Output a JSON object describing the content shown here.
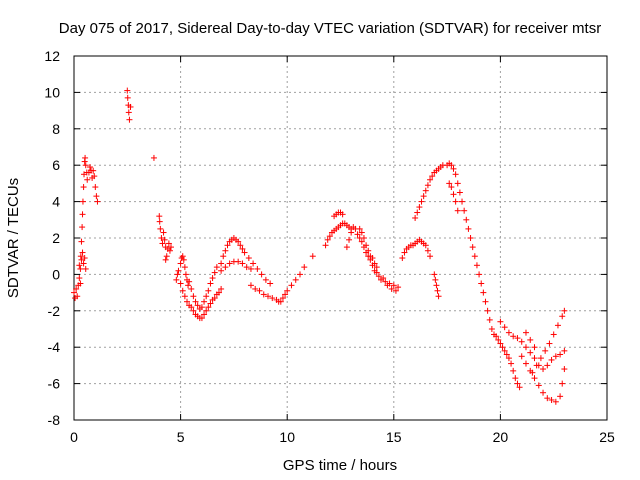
{
  "chart_data": {
    "type": "scatter",
    "title": "Day 075 of 2017, Sidereal Day-to-day VTEC variation (SDTVAR) for receiver mtsr",
    "xlabel": "GPS time / hours",
    "ylabel": "SDTVAR / TECUs",
    "xlim": [
      0,
      25
    ],
    "ylim": [
      -8,
      12
    ],
    "xticks": [
      0,
      5,
      10,
      15,
      20,
      25
    ],
    "yticks": [
      -8,
      -6,
      -4,
      -2,
      0,
      2,
      4,
      6,
      8,
      10,
      12
    ],
    "grid": true,
    "marker": "+",
    "series_color": "#ff0000",
    "series": [
      {
        "name": "mtsr",
        "values": [
          [
            0.0,
            -1.0
          ],
          [
            0.05,
            -1.3
          ],
          [
            0.1,
            -0.8
          ],
          [
            0.15,
            -1.2
          ],
          [
            0.2,
            -0.6
          ],
          [
            0.25,
            -0.2
          ],
          [
            0.3,
            0.3
          ],
          [
            0.32,
            1.0
          ],
          [
            0.35,
            1.8
          ],
          [
            0.38,
            2.6
          ],
          [
            0.4,
            3.3
          ],
          [
            0.42,
            4.0
          ],
          [
            0.45,
            4.8
          ],
          [
            0.47,
            5.5
          ],
          [
            0.5,
            6.2
          ],
          [
            0.52,
            6.4
          ],
          [
            0.55,
            6.0
          ],
          [
            0.6,
            5.6
          ],
          [
            0.62,
            5.2
          ],
          [
            0.7,
            5.6
          ],
          [
            0.75,
            5.9
          ],
          [
            0.8,
            5.7
          ],
          [
            0.85,
            5.3
          ],
          [
            0.9,
            5.7
          ],
          [
            0.95,
            5.4
          ],
          [
            1.0,
            4.8
          ],
          [
            1.05,
            4.3
          ],
          [
            1.1,
            4.0
          ],
          [
            0.35,
            0.8
          ],
          [
            0.4,
            1.2
          ],
          [
            0.45,
            0.6
          ],
          [
            0.5,
            0.9
          ],
          [
            0.55,
            0.3
          ],
          [
            0.3,
            -0.5
          ],
          [
            0.25,
            0.5
          ],
          [
            2.5,
            10.1
          ],
          [
            2.52,
            9.7
          ],
          [
            2.55,
            9.3
          ],
          [
            2.57,
            8.9
          ],
          [
            2.6,
            8.5
          ],
          [
            2.65,
            9.2
          ],
          [
            3.75,
            6.4
          ],
          [
            4.0,
            3.2
          ],
          [
            4.02,
            2.9
          ],
          [
            4.05,
            2.5
          ],
          [
            4.1,
            2.0
          ],
          [
            4.15,
            1.7
          ],
          [
            4.2,
            2.3
          ],
          [
            4.25,
            1.9
          ],
          [
            4.3,
            1.5
          ],
          [
            4.35,
            1.0
          ],
          [
            4.4,
            1.4
          ],
          [
            4.45,
            1.7
          ],
          [
            4.5,
            1.3
          ],
          [
            4.55,
            1.5
          ],
          [
            4.3,
            0.8
          ],
          [
            4.8,
            -0.3
          ],
          [
            4.85,
            0.0
          ],
          [
            4.9,
            0.2
          ],
          [
            5.0,
            0.6
          ],
          [
            5.05,
            0.9
          ],
          [
            5.1,
            1.0
          ],
          [
            5.15,
            0.8
          ],
          [
            5.2,
            0.4
          ],
          [
            5.25,
            0.0
          ],
          [
            5.3,
            -0.3
          ],
          [
            5.35,
            -0.6
          ],
          [
            5.0,
            -0.5
          ],
          [
            5.1,
            -0.9
          ],
          [
            5.2,
            -1.2
          ],
          [
            5.3,
            -1.5
          ],
          [
            5.4,
            -1.7
          ],
          [
            5.5,
            -1.8
          ],
          [
            5.6,
            -2.0
          ],
          [
            5.7,
            -2.2
          ],
          [
            5.8,
            -2.3
          ],
          [
            5.9,
            -2.4
          ],
          [
            6.0,
            -2.4
          ],
          [
            6.1,
            -2.2
          ],
          [
            6.2,
            -2.0
          ],
          [
            6.3,
            -1.8
          ],
          [
            5.4,
            -0.4
          ],
          [
            5.5,
            -0.8
          ],
          [
            5.6,
            -1.2
          ],
          [
            5.7,
            -1.5
          ],
          [
            5.8,
            -1.7
          ],
          [
            5.9,
            -1.9
          ],
          [
            6.0,
            -1.8
          ],
          [
            6.1,
            -1.5
          ],
          [
            6.2,
            -1.2
          ],
          [
            6.3,
            -0.9
          ],
          [
            6.4,
            -0.5
          ],
          [
            6.5,
            -0.2
          ],
          [
            6.6,
            0.1
          ],
          [
            6.7,
            0.4
          ],
          [
            6.4,
            -1.6
          ],
          [
            6.5,
            -1.4
          ],
          [
            6.6,
            -1.3
          ],
          [
            6.7,
            -1.1
          ],
          [
            6.8,
            -1.0
          ],
          [
            6.9,
            -0.8
          ],
          [
            6.9,
            0.6
          ],
          [
            7.0,
            1.0
          ],
          [
            7.1,
            1.3
          ],
          [
            7.2,
            1.6
          ],
          [
            7.3,
            1.8
          ],
          [
            7.4,
            1.9
          ],
          [
            7.5,
            2.0
          ],
          [
            7.6,
            1.9
          ],
          [
            7.7,
            1.8
          ],
          [
            7.8,
            1.6
          ],
          [
            7.9,
            1.4
          ],
          [
            8.0,
            1.2
          ],
          [
            8.2,
            0.9
          ],
          [
            8.4,
            0.6
          ],
          [
            8.6,
            0.3
          ],
          [
            8.8,
            0.0
          ],
          [
            9.0,
            -0.3
          ],
          [
            9.2,
            -0.5
          ],
          [
            6.9,
            0.2
          ],
          [
            7.1,
            0.4
          ],
          [
            7.3,
            0.6
          ],
          [
            7.5,
            0.7
          ],
          [
            7.7,
            0.7
          ],
          [
            7.9,
            0.6
          ],
          [
            8.1,
            0.4
          ],
          [
            8.3,
            0.3
          ],
          [
            8.3,
            -0.6
          ],
          [
            8.5,
            -0.8
          ],
          [
            8.7,
            -0.9
          ],
          [
            8.9,
            -1.1
          ],
          [
            9.1,
            -1.2
          ],
          [
            9.3,
            -1.3
          ],
          [
            9.5,
            -1.4
          ],
          [
            9.6,
            -1.5
          ],
          [
            9.7,
            -1.5
          ],
          [
            9.8,
            -1.3
          ],
          [
            9.9,
            -1.1
          ],
          [
            10.0,
            -0.9
          ],
          [
            10.2,
            -0.6
          ],
          [
            10.4,
            -0.3
          ],
          [
            10.6,
            0.0
          ],
          [
            10.8,
            0.4
          ],
          [
            11.2,
            1.0
          ],
          [
            11.8,
            1.6
          ],
          [
            11.9,
            1.9
          ],
          [
            12.0,
            2.1
          ],
          [
            12.1,
            2.3
          ],
          [
            12.2,
            2.4
          ],
          [
            12.3,
            2.5
          ],
          [
            12.4,
            2.6
          ],
          [
            12.5,
            2.7
          ],
          [
            12.6,
            2.8
          ],
          [
            12.7,
            2.8
          ],
          [
            12.8,
            2.7
          ],
          [
            12.9,
            2.6
          ],
          [
            13.0,
            2.5
          ],
          [
            12.2,
            3.2
          ],
          [
            12.3,
            3.3
          ],
          [
            12.4,
            3.4
          ],
          [
            12.5,
            3.4
          ],
          [
            12.6,
            3.3
          ],
          [
            12.8,
            1.5
          ],
          [
            12.9,
            1.9
          ],
          [
            13.0,
            2.3
          ],
          [
            13.1,
            2.6
          ],
          [
            13.2,
            2.5
          ],
          [
            13.3,
            2.2
          ],
          [
            13.4,
            2.0
          ],
          [
            13.5,
            1.8
          ],
          [
            13.6,
            1.5
          ],
          [
            13.7,
            1.2
          ],
          [
            13.8,
            1.0
          ],
          [
            13.9,
            0.8
          ],
          [
            14.0,
            0.5
          ],
          [
            14.1,
            0.2
          ],
          [
            14.2,
            0.1
          ],
          [
            13.4,
            2.5
          ],
          [
            13.5,
            2.3
          ],
          [
            13.6,
            2.0
          ],
          [
            13.7,
            1.6
          ],
          [
            13.8,
            1.3
          ],
          [
            13.9,
            1.0
          ],
          [
            14.0,
            0.9
          ],
          [
            14.1,
            0.6
          ],
          [
            14.2,
            0.4
          ],
          [
            14.3,
            -0.1
          ],
          [
            14.4,
            -0.3
          ],
          [
            14.5,
            -0.2
          ],
          [
            14.6,
            -0.4
          ],
          [
            14.7,
            -0.6
          ],
          [
            14.8,
            -0.5
          ],
          [
            14.9,
            -0.8
          ],
          [
            15.0,
            -0.6
          ],
          [
            15.1,
            -0.9
          ],
          [
            15.2,
            -0.7
          ],
          [
            15.4,
            0.9
          ],
          [
            15.5,
            1.2
          ],
          [
            15.6,
            1.4
          ],
          [
            15.7,
            1.5
          ],
          [
            15.8,
            1.6
          ],
          [
            15.9,
            1.6
          ],
          [
            16.0,
            1.7
          ],
          [
            16.1,
            1.8
          ],
          [
            16.2,
            1.9
          ],
          [
            16.3,
            1.8
          ],
          [
            16.4,
            1.7
          ],
          [
            16.5,
            1.6
          ],
          [
            16.6,
            1.3
          ],
          [
            16.7,
            1.0
          ],
          [
            16.0,
            3.1
          ],
          [
            16.1,
            3.4
          ],
          [
            16.2,
            3.7
          ],
          [
            16.3,
            4.0
          ],
          [
            16.4,
            4.3
          ],
          [
            16.5,
            4.6
          ],
          [
            16.6,
            4.9
          ],
          [
            16.7,
            5.2
          ],
          [
            16.8,
            5.4
          ],
          [
            16.9,
            5.6
          ],
          [
            17.0,
            5.7
          ],
          [
            17.1,
            5.8
          ],
          [
            17.2,
            5.9
          ],
          [
            17.3,
            6.0
          ],
          [
            16.9,
            0.0
          ],
          [
            16.95,
            -0.3
          ],
          [
            17.0,
            -0.6
          ],
          [
            17.05,
            -0.9
          ],
          [
            17.1,
            -1.2
          ],
          [
            17.5,
            6.0
          ],
          [
            17.6,
            6.1
          ],
          [
            17.7,
            6.0
          ],
          [
            17.8,
            5.8
          ],
          [
            17.9,
            5.5
          ],
          [
            18.0,
            5.0
          ],
          [
            18.1,
            4.5
          ],
          [
            18.2,
            4.0
          ],
          [
            18.3,
            3.5
          ],
          [
            18.4,
            3.0
          ],
          [
            18.5,
            2.5
          ],
          [
            18.6,
            2.0
          ],
          [
            18.7,
            1.5
          ],
          [
            18.8,
            1.0
          ],
          [
            18.9,
            0.5
          ],
          [
            19.0,
            0.0
          ],
          [
            19.1,
            -0.5
          ],
          [
            19.2,
            -1.0
          ],
          [
            19.3,
            -1.5
          ],
          [
            19.4,
            -2.0
          ],
          [
            19.5,
            -2.5
          ],
          [
            19.6,
            -3.0
          ],
          [
            19.7,
            -3.3
          ],
          [
            17.6,
            5.0
          ],
          [
            17.7,
            4.8
          ],
          [
            17.8,
            4.4
          ],
          [
            17.9,
            4.0
          ],
          [
            18.0,
            3.5
          ],
          [
            19.8,
            -3.4
          ],
          [
            19.9,
            -3.6
          ],
          [
            20.0,
            -3.8
          ],
          [
            20.1,
            -4.0
          ],
          [
            20.2,
            -4.2
          ],
          [
            20.3,
            -4.4
          ],
          [
            20.4,
            -4.6
          ],
          [
            20.5,
            -4.9
          ],
          [
            20.6,
            -5.3
          ],
          [
            20.7,
            -5.7
          ],
          [
            20.8,
            -6.0
          ],
          [
            20.9,
            -6.2
          ],
          [
            20.0,
            -2.6
          ],
          [
            20.2,
            -2.9
          ],
          [
            20.4,
            -3.2
          ],
          [
            20.6,
            -3.4
          ],
          [
            20.8,
            -3.5
          ],
          [
            21.0,
            -3.7
          ],
          [
            21.2,
            -4.0
          ],
          [
            21.4,
            -4.3
          ],
          [
            21.6,
            -4.6
          ],
          [
            21.8,
            -5.0
          ],
          [
            22.0,
            -5.2
          ],
          [
            22.2,
            -5.0
          ],
          [
            22.4,
            -4.7
          ],
          [
            22.6,
            -4.5
          ],
          [
            22.8,
            -4.4
          ],
          [
            23.0,
            -4.2
          ],
          [
            21.0,
            -4.5
          ],
          [
            21.2,
            -4.9
          ],
          [
            21.4,
            -5.3
          ],
          [
            21.6,
            -5.7
          ],
          [
            21.8,
            -6.1
          ],
          [
            22.0,
            -6.5
          ],
          [
            22.2,
            -6.8
          ],
          [
            22.4,
            -6.9
          ],
          [
            22.6,
            -7.0
          ],
          [
            22.8,
            -6.7
          ],
          [
            22.9,
            -6.0
          ],
          [
            23.0,
            -5.2
          ],
          [
            21.5,
            -5.4
          ],
          [
            21.7,
            -5.0
          ],
          [
            21.9,
            -4.6
          ],
          [
            22.1,
            -4.2
          ],
          [
            22.3,
            -3.8
          ],
          [
            22.5,
            -3.3
          ],
          [
            22.7,
            -2.8
          ],
          [
            22.9,
            -2.3
          ],
          [
            23.0,
            -2.0
          ],
          [
            21.2,
            -3.2
          ],
          [
            21.4,
            -3.6
          ],
          [
            21.6,
            -4.0
          ]
        ]
      }
    ]
  }
}
